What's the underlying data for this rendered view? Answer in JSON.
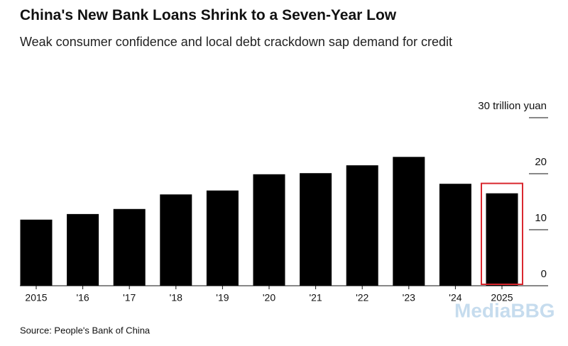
{
  "chart_data": {
    "type": "bar",
    "title": "China's New Bank Loans Shrink to a Seven-Year Low",
    "subtitle": "Weak consumer confidence and local debt crackdown sap demand for credit",
    "source": "Source: People's Bank of China",
    "watermark": "MediaBBG",
    "categories": [
      "2015",
      "'16",
      "'17",
      "'18",
      "'19",
      "'20",
      "'21",
      "'22",
      "'23",
      "'24",
      "2025"
    ],
    "values": [
      11.8,
      12.8,
      13.7,
      16.3,
      17.0,
      19.9,
      20.1,
      21.5,
      23.0,
      18.2,
      16.5
    ],
    "color": "#000000",
    "highlighted": "2025",
    "highlight_color": "#d9282f",
    "ylim": [
      0,
      30
    ],
    "yticks": [
      0,
      10,
      20,
      {
        "value": 30,
        "label": "30 trillion yuan"
      }
    ],
    "grid": false
  }
}
